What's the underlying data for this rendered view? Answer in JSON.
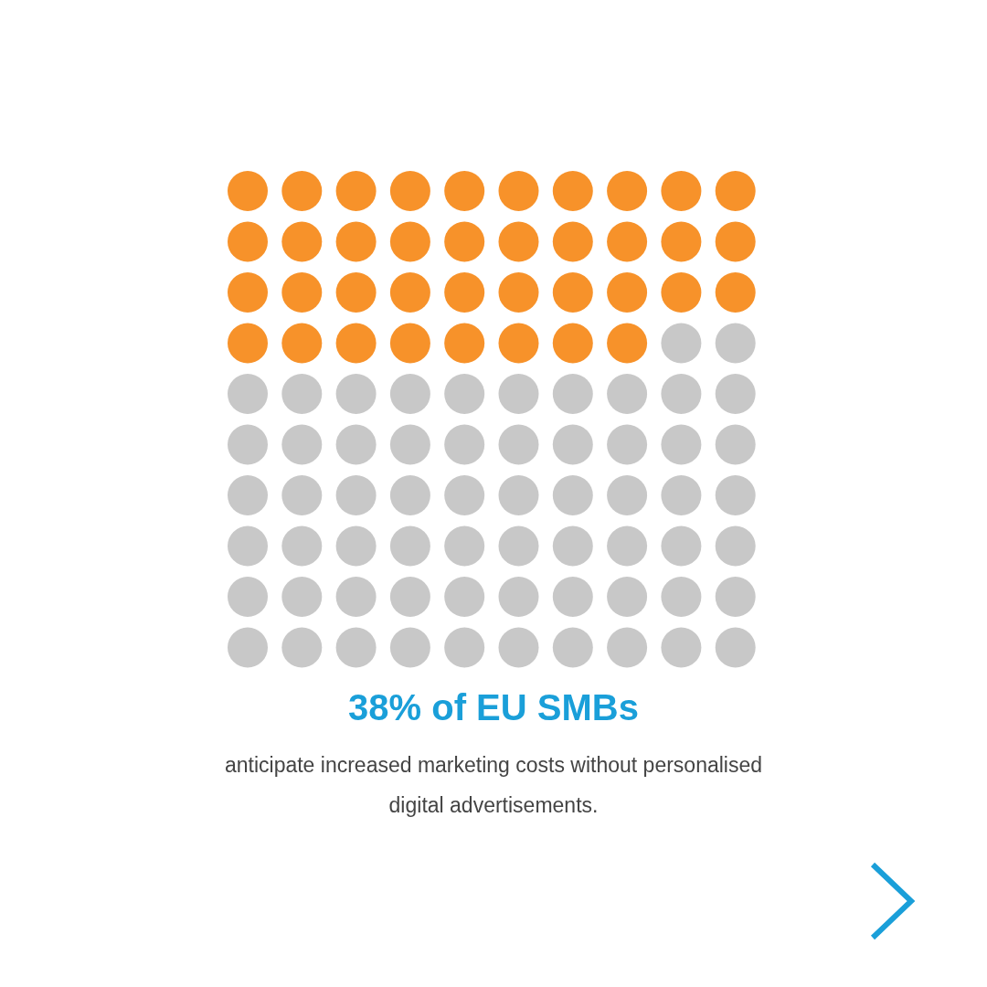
{
  "chart_data": {
    "type": "other",
    "title": "of EU SMBs",
    "subtitle": "anticipate increased marketing costs without personalised digital advertisements.",
    "values": [
      38
    ],
    "value_labels": [
      "38%"
    ],
    "color": "#f7922a"
  }
}
